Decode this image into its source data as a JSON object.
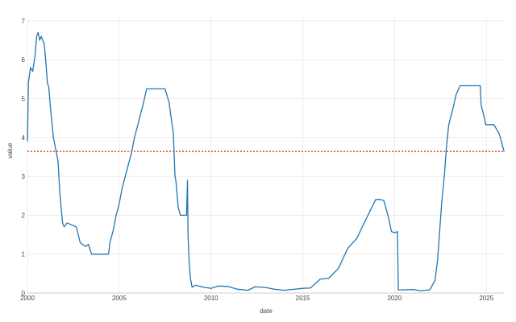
{
  "chart_data": {
    "type": "line",
    "xlabel": "date",
    "ylabel": "value",
    "xlim": [
      "2000-01-01",
      "2026-01-01"
    ],
    "ylim": [
      0,
      7.1
    ],
    "x_ticks": [
      "2000",
      "2005",
      "2010",
      "2015",
      "2020",
      "2025"
    ],
    "y_ticks": [
      0,
      1,
      2,
      3,
      4,
      5,
      6,
      7
    ],
    "grid": true,
    "legend": "none",
    "series": [
      {
        "color": "#1f77b4",
        "points": [
          [
            "2000-01-03",
            3.9
          ],
          [
            "2000-01-20",
            5.4
          ],
          [
            "2000-03-01",
            5.8
          ],
          [
            "2000-04-15",
            5.7
          ],
          [
            "2000-06-01",
            6.1
          ],
          [
            "2000-07-01",
            6.6
          ],
          [
            "2000-08-01",
            6.7
          ],
          [
            "2000-09-01",
            6.5
          ],
          [
            "2000-10-01",
            6.6
          ],
          [
            "2000-11-01",
            6.5
          ],
          [
            "2000-12-01",
            6.4
          ],
          [
            "2001-01-05",
            5.9
          ],
          [
            "2001-02-01",
            5.4
          ],
          [
            "2001-03-01",
            5.3
          ],
          [
            "2001-04-01",
            4.8
          ],
          [
            "2001-05-01",
            4.4
          ],
          [
            "2001-06-01",
            4.0
          ],
          [
            "2001-07-01",
            3.8
          ],
          [
            "2001-08-01",
            3.6
          ],
          [
            "2001-09-01",
            3.4
          ],
          [
            "2001-10-01",
            2.7
          ],
          [
            "2001-11-01",
            2.2
          ],
          [
            "2001-12-01",
            1.8
          ],
          [
            "2002-01-01",
            1.7
          ],
          [
            "2002-03-01",
            1.8
          ],
          [
            "2002-06-01",
            1.75
          ],
          [
            "2002-09-01",
            1.7
          ],
          [
            "2002-11-15",
            1.3
          ],
          [
            "2003-01-01",
            1.25
          ],
          [
            "2003-03-01",
            1.2
          ],
          [
            "2003-05-01",
            1.25
          ],
          [
            "2003-06-30",
            1.0
          ],
          [
            "2003-09-01",
            1.0
          ],
          [
            "2003-12-01",
            1.0
          ],
          [
            "2004-03-01",
            1.0
          ],
          [
            "2004-06-01",
            1.0
          ],
          [
            "2004-07-01",
            1.3
          ],
          [
            "2004-09-01",
            1.6
          ],
          [
            "2004-11-01",
            2.0
          ],
          [
            "2005-01-01",
            2.3
          ],
          [
            "2005-03-01",
            2.7
          ],
          [
            "2005-05-01",
            3.0
          ],
          [
            "2005-07-01",
            3.3
          ],
          [
            "2005-09-01",
            3.6
          ],
          [
            "2005-11-01",
            4.0
          ],
          [
            "2006-01-01",
            4.3
          ],
          [
            "2006-03-01",
            4.6
          ],
          [
            "2006-05-01",
            4.9
          ],
          [
            "2006-07-01",
            5.25
          ],
          [
            "2006-10-01",
            5.25
          ],
          [
            "2007-01-01",
            5.25
          ],
          [
            "2007-04-01",
            5.25
          ],
          [
            "2007-07-01",
            5.25
          ],
          [
            "2007-09-20",
            4.9
          ],
          [
            "2007-11-01",
            4.5
          ],
          [
            "2007-12-15",
            4.1
          ],
          [
            "2008-01-15",
            3.0
          ],
          [
            "2008-02-01",
            2.9
          ],
          [
            "2008-03-20",
            2.2
          ],
          [
            "2008-05-01",
            2.0
          ],
          [
            "2008-07-01",
            2.0
          ],
          [
            "2008-09-01",
            2.0
          ],
          [
            "2008-09-20",
            2.9
          ],
          [
            "2008-10-01",
            1.5
          ],
          [
            "2008-10-20",
            0.9
          ],
          [
            "2008-11-15",
            0.4
          ],
          [
            "2008-12-20",
            0.15
          ],
          [
            "2009-03-01",
            0.2
          ],
          [
            "2009-08-01",
            0.15
          ],
          [
            "2010-01-01",
            0.12
          ],
          [
            "2010-06-01",
            0.18
          ],
          [
            "2010-12-01",
            0.17
          ],
          [
            "2011-06-01",
            0.1
          ],
          [
            "2012-01-01",
            0.07
          ],
          [
            "2012-06-01",
            0.16
          ],
          [
            "2013-01-01",
            0.14
          ],
          [
            "2013-06-01",
            0.1
          ],
          [
            "2014-01-01",
            0.07
          ],
          [
            "2014-06-01",
            0.09
          ],
          [
            "2015-01-01",
            0.12
          ],
          [
            "2015-06-01",
            0.13
          ],
          [
            "2015-12-17",
            0.36
          ],
          [
            "2016-06-01",
            0.38
          ],
          [
            "2016-12-15",
            0.64
          ],
          [
            "2017-03-16",
            0.9
          ],
          [
            "2017-06-15",
            1.15
          ],
          [
            "2017-12-14",
            1.41
          ],
          [
            "2018-03-22",
            1.68
          ],
          [
            "2018-06-14",
            1.9
          ],
          [
            "2018-09-27",
            2.18
          ],
          [
            "2018-12-20",
            2.4
          ],
          [
            "2019-03-01",
            2.41
          ],
          [
            "2019-06-01",
            2.38
          ],
          [
            "2019-08-01",
            2.1
          ],
          [
            "2019-09-19",
            1.85
          ],
          [
            "2019-10-31",
            1.58
          ],
          [
            "2020-01-01",
            1.55
          ],
          [
            "2020-02-28",
            1.58
          ],
          [
            "2020-03-04",
            1.1
          ],
          [
            "2020-03-16",
            0.08
          ],
          [
            "2020-06-01",
            0.08
          ],
          [
            "2021-01-01",
            0.09
          ],
          [
            "2021-06-01",
            0.06
          ],
          [
            "2021-12-01",
            0.08
          ],
          [
            "2022-03-17",
            0.33
          ],
          [
            "2022-05-05",
            0.83
          ],
          [
            "2022-06-16",
            1.58
          ],
          [
            "2022-07-28",
            2.33
          ],
          [
            "2022-09-22",
            3.08
          ],
          [
            "2022-11-03",
            3.83
          ],
          [
            "2022-12-15",
            4.33
          ],
          [
            "2023-02-02",
            4.57
          ],
          [
            "2023-03-23",
            4.83
          ],
          [
            "2023-05-04",
            5.08
          ],
          [
            "2023-07-27",
            5.33
          ],
          [
            "2024-09-01",
            5.33
          ],
          [
            "2024-09-19",
            4.83
          ],
          [
            "2024-11-08",
            4.58
          ],
          [
            "2024-12-19",
            4.33
          ],
          [
            "2025-06-01",
            4.33
          ],
          [
            "2025-09-18",
            4.08
          ],
          [
            "2025-11-01",
            3.87
          ],
          [
            "2025-12-20",
            3.64
          ]
        ]
      }
    ],
    "reference_line": {
      "value": 3.64,
      "color": "#e0441c",
      "style": "dotted"
    }
  }
}
